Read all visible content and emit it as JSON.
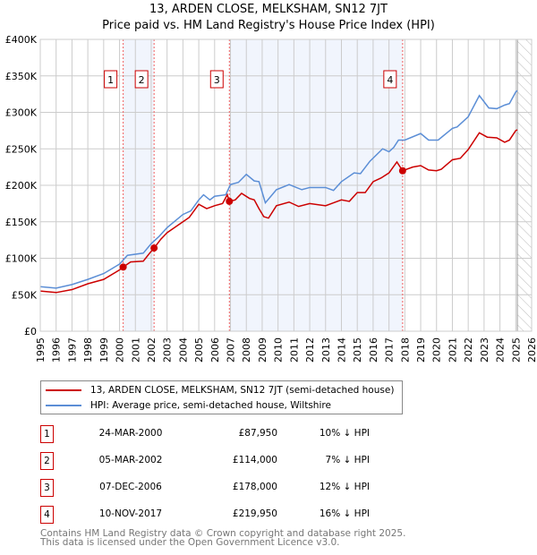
{
  "chart_data": {
    "type": "line",
    "title": "13, ARDEN CLOSE, MELKSHAM, SN12 7JT",
    "subtitle": "Price paid vs. HM Land Registry's House Price Index (HPI)",
    "xlim": [
      1995,
      2026
    ],
    "ylim": [
      0,
      400000
    ],
    "yticks": [
      0,
      50000,
      100000,
      150000,
      200000,
      250000,
      300000,
      350000,
      400000
    ],
    "ytick_labels": [
      "£0",
      "£50K",
      "£100K",
      "£150K",
      "£200K",
      "£250K",
      "£300K",
      "£350K",
      "£400K"
    ],
    "xticks": [
      1995,
      1996,
      1997,
      1998,
      1999,
      2000,
      2001,
      2002,
      2003,
      2004,
      2005,
      2006,
      2007,
      2008,
      2009,
      2010,
      2011,
      2012,
      2013,
      2014,
      2015,
      2016,
      2017,
      2018,
      2019,
      2020,
      2021,
      2022,
      2023,
      2024,
      2025,
      2026
    ],
    "grid": true,
    "legend_position": "below",
    "forecast_hatch_from": 2025.1,
    "series": [
      {
        "name": "13, ARDEN CLOSE, MELKSHAM, SN12 7JT (semi-detached house)",
        "color": "#cc0000",
        "x": [
          1995,
          1996,
          1997,
          1998,
          1999,
          2000,
          2000.22,
          2000.7,
          2001.5,
          2001.9,
          2002.18,
          2002.6,
          2003,
          2004,
          2004.4,
          2005,
          2005.5,
          2006,
          2006.5,
          2006.8,
          2006.93,
          2007.3,
          2007.7,
          2008.2,
          2008.5,
          2008.8,
          2009.1,
          2009.4,
          2009.9,
          2010.7,
          2011.3,
          2012,
          2013,
          2013.5,
          2014,
          2014.5,
          2015,
          2015.5,
          2016,
          2016.5,
          2017,
          2017.5,
          2017.86,
          2018.5,
          2019,
          2019.5,
          2020,
          2020.3,
          2021,
          2021.5,
          2022,
          2022.7,
          2023.2,
          2023.8,
          2024.3,
          2024.6,
          2025,
          2025.1
        ],
        "y": [
          55000,
          53000,
          57000,
          65000,
          71000,
          84000,
          87950,
          95000,
          96000,
          107000,
          114000,
          126000,
          135000,
          150000,
          156000,
          174000,
          168000,
          172000,
          175000,
          187000,
          178000,
          180000,
          189000,
          182000,
          180000,
          168000,
          157000,
          155000,
          172000,
          177000,
          171000,
          175000,
          172000,
          176000,
          180000,
          178000,
          190000,
          190000,
          205000,
          210000,
          217000,
          232000,
          219950,
          225000,
          227000,
          221000,
          220000,
          222000,
          235000,
          237000,
          249000,
          272000,
          266000,
          265000,
          259000,
          262000,
          275000,
          276000
        ]
      },
      {
        "name": "HPI: Average price, semi-detached house, Wiltshire",
        "color": "#5b8ed6",
        "x": [
          1995,
          1996,
          1997,
          1998,
          1999,
          2000,
          2000.5,
          2001.5,
          2002,
          2002.5,
          2003,
          2004,
          2004.5,
          2005,
          2005.3,
          2005.7,
          2006,
          2006.7,
          2007,
          2007.5,
          2008,
          2008.5,
          2008.8,
          2009.2,
          2009.9,
          2010.7,
          2011.5,
          2012,
          2013,
          2013.5,
          2014,
          2014.8,
          2015.2,
          2015.8,
          2016.6,
          2017,
          2017.3,
          2017.6,
          2018,
          2019,
          2019.5,
          2020.1,
          2021,
          2021.3,
          2022,
          2022.7,
          2023.3,
          2023.8,
          2024.3,
          2024.6,
          2025,
          2025.1
        ],
        "y": [
          61000,
          59000,
          64000,
          71000,
          79000,
          92000,
          104000,
          107000,
          120000,
          130000,
          142000,
          160000,
          165000,
          180000,
          187000,
          180000,
          185000,
          187000,
          201000,
          204000,
          215000,
          206000,
          205000,
          176000,
          194000,
          201000,
          194000,
          197000,
          197000,
          193000,
          205000,
          217000,
          216000,
          233000,
          250000,
          246000,
          252000,
          262000,
          262000,
          271000,
          262000,
          262000,
          278000,
          280000,
          294000,
          323000,
          306000,
          305000,
          310000,
          312000,
          328000,
          330000
        ]
      }
    ],
    "sales": [
      {
        "label": "1",
        "x": 2000.23,
        "y": 87950,
        "date": "24-MAR-2000",
        "price": "£87,950",
        "hpi": "10% ↓ HPI"
      },
      {
        "label": "2",
        "x": 2002.18,
        "y": 114000,
        "date": "05-MAR-2002",
        "price": "£114,000",
        "hpi": "7% ↓ HPI"
      },
      {
        "label": "3",
        "x": 2006.93,
        "y": 178000,
        "date": "07-DEC-2006",
        "price": "£178,000",
        "hpi": "12% ↓ HPI"
      },
      {
        "label": "4",
        "x": 2017.86,
        "y": 219950,
        "date": "10-NOV-2017",
        "price": "£219,950",
        "hpi": "16% ↓ HPI"
      }
    ],
    "shaded_ranges": [
      [
        2000.23,
        2002.18
      ],
      [
        2006.93,
        2017.86
      ]
    ]
  },
  "footer": {
    "line1": "Contains HM Land Registry data © Crown copyright and database right 2025.",
    "line2": "This data is licensed under the Open Government Licence v3.0."
  }
}
